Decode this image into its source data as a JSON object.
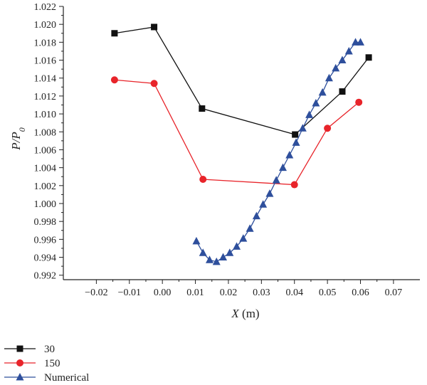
{
  "chart_data": {
    "type": "line",
    "xlabel": "X (m)",
    "ylabel": "P/P0",
    "ylabel_main": "P/P",
    "ylabel_sub": "0",
    "xlim": [
      -0.03,
      0.078
    ],
    "ylim": [
      0.9915,
      1.022
    ],
    "x_ticks": [
      -0.02,
      -0.01,
      0.0,
      0.01,
      0.02,
      0.03,
      0.04,
      0.05,
      0.06,
      0.07
    ],
    "x_tick_labels": [
      "−0.02",
      "−0.01",
      "0.00",
      "0.01",
      "0.02",
      "0.03",
      "0.04",
      "0.05",
      "0.06",
      "0.07"
    ],
    "y_ticks": [
      0.992,
      0.994,
      0.996,
      0.998,
      1.0,
      1.002,
      1.004,
      1.006,
      1.008,
      1.01,
      1.012,
      1.014,
      1.016,
      1.018,
      1.02,
      1.022
    ],
    "y_tick_labels": [
      "0.992",
      "0.994",
      "0.996",
      "0.998",
      "1.000",
      "1.002",
      "1.004",
      "1.006",
      "1.008",
      "1.010",
      "1.012",
      "1.014",
      "1.016",
      "1.018",
      "1.020",
      "1.022"
    ],
    "legend_position": "bottom-left",
    "series": [
      {
        "name": "30",
        "color": "#111111",
        "marker": "square",
        "x": [
          -0.0145,
          -0.0025,
          0.012,
          0.0402,
          0.0545,
          0.0625
        ],
        "y": [
          1.019,
          1.0197,
          1.0106,
          1.0077,
          1.0125,
          1.0163
        ]
      },
      {
        "name": "150",
        "color": "#e8242a",
        "marker": "circle",
        "x": [
          -0.0145,
          -0.0025,
          0.0123,
          0.04,
          0.05,
          0.0595
        ],
        "y": [
          1.0138,
          1.0134,
          1.0027,
          1.0021,
          1.0084,
          1.0113
        ]
      },
      {
        "name": "Numerical",
        "color": "#2e4f9c",
        "marker": "triangle",
        "x": [
          0.0103,
          0.0123,
          0.0143,
          0.0164,
          0.0184,
          0.0204,
          0.0225,
          0.0245,
          0.0265,
          0.0285,
          0.0305,
          0.0325,
          0.0345,
          0.0365,
          0.0385,
          0.0405,
          0.0425,
          0.0445,
          0.0465,
          0.0485,
          0.0505,
          0.0525,
          0.0545,
          0.0565,
          0.0585,
          0.06
        ],
        "y": [
          0.9958,
          0.9945,
          0.9937,
          0.9935,
          0.994,
          0.9945,
          0.9952,
          0.9961,
          0.9972,
          0.9986,
          0.9999,
          1.0011,
          1.0026,
          1.004,
          1.0054,
          1.0068,
          1.0084,
          1.0099,
          1.0112,
          1.0124,
          1.014,
          1.0151,
          1.016,
          1.017,
          1.018,
          1.018
        ]
      }
    ]
  }
}
